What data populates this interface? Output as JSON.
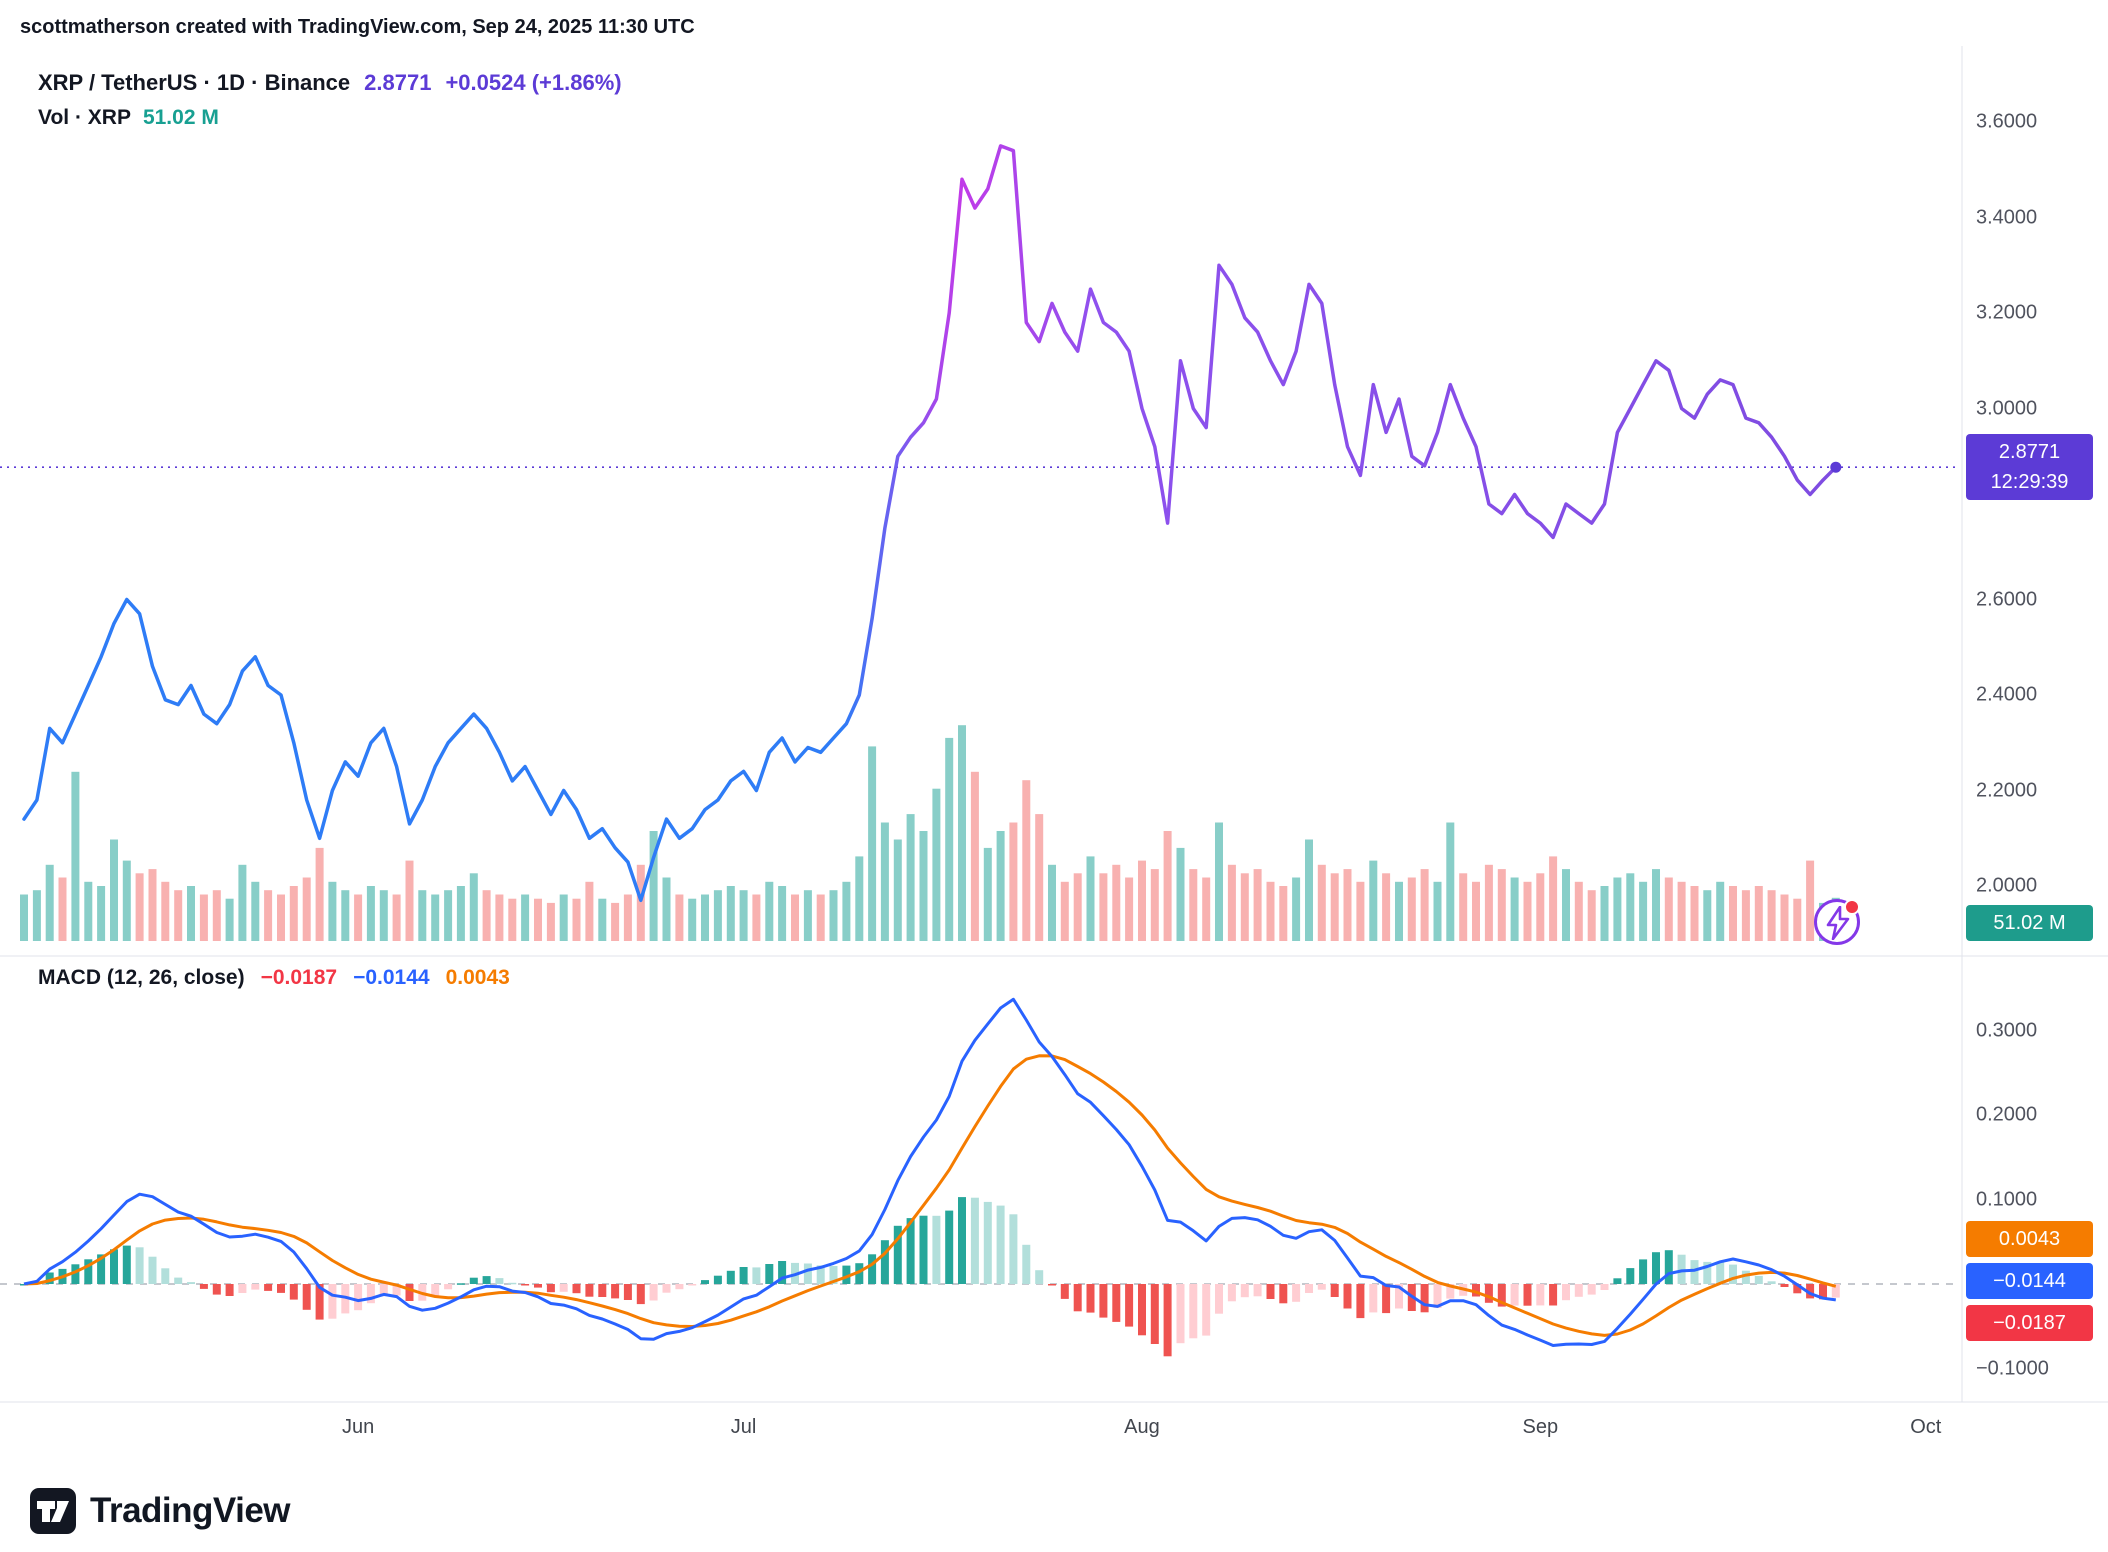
{
  "attribution": "scottmatherson created with TradingView.com, Sep 24, 2025 11:30 UTC",
  "header": {
    "symbol_line": "XRP / TetherUS · 1D · Binance",
    "price": "2.8771",
    "change": "+0.0524 (+1.86%)",
    "vol_label": "Vol · XRP",
    "vol_value": "51.02 M"
  },
  "macd_header": {
    "label": "MACD (12, 26, close)",
    "hist": "−0.0187",
    "macd": "−0.0144",
    "signal": "0.0043"
  },
  "badges": {
    "price": "2.8771",
    "countdown": "12:29:39",
    "volume": "51.02 M",
    "macd_signal": "0.0043",
    "macd_line": "−0.0144",
    "macd_hist": "−0.0187"
  },
  "logo": {
    "text": "TradingView"
  },
  "colors": {
    "accent_purple": "#5C3BD6",
    "teal_text": "#18A092",
    "red": "#F23645",
    "macd_line": "#2962FF",
    "signal_line": "#F57C00",
    "vol_up": "rgba(38,166,154,0.55)",
    "vol_down": "rgba(239,83,80,0.45)",
    "vol_badge": "#1E9C8C",
    "hist_up_grow": "#26A69A",
    "hist_up_fall": "#B2DFDB",
    "hist_down_grow": "#FFCDD2",
    "hist_down_fall": "#EF5350",
    "grid": "#E0E3EB",
    "zero_line": "#B2B5BE",
    "text_dark": "#131722",
    "text_gray": "#50535E",
    "line_gradient": [
      {
        "o": 0,
        "c": "#2E7CF6"
      },
      {
        "o": 0.43,
        "c": "#2E7CF6"
      },
      {
        "o": 0.49,
        "c": "#C13BE8"
      },
      {
        "o": 0.56,
        "c": "#8E51EE"
      },
      {
        "o": 1,
        "c": "#7C4BDF"
      }
    ]
  },
  "chart_data": {
    "type": "line",
    "title": "XRP / TetherUS · 1D · Binance",
    "panels": [
      "price_with_volume",
      "macd"
    ],
    "months": [
      {
        "label": "Jun",
        "i": 26
      },
      {
        "label": "Jul",
        "i": 56
      },
      {
        "label": "Aug",
        "i": 87
      },
      {
        "label": "Sep",
        "i": 118
      },
      {
        "label": "Oct",
        "i": 148
      }
    ],
    "price": {
      "last": 2.8771,
      "ylim": [
        1.88,
        3.74
      ],
      "ticks": [
        {
          "label": "3.6000",
          "v": 3.6
        },
        {
          "label": "3.4000",
          "v": 3.4
        },
        {
          "label": "3.2000",
          "v": 3.2
        },
        {
          "label": "3.0000",
          "v": 3.0
        },
        {
          "label": "2.6000",
          "v": 2.6
        },
        {
          "label": "2.4000",
          "v": 2.4
        },
        {
          "label": "2.2000",
          "v": 2.2
        },
        {
          "label": "2.0000",
          "v": 2.0
        }
      ],
      "values": [
        2.14,
        2.18,
        2.33,
        2.3,
        2.36,
        2.42,
        2.48,
        2.55,
        2.6,
        2.57,
        2.46,
        2.39,
        2.38,
        2.42,
        2.36,
        2.34,
        2.38,
        2.45,
        2.48,
        2.42,
        2.4,
        2.3,
        2.18,
        2.1,
        2.2,
        2.26,
        2.23,
        2.3,
        2.33,
        2.25,
        2.13,
        2.18,
        2.25,
        2.3,
        2.33,
        2.36,
        2.33,
        2.28,
        2.22,
        2.25,
        2.2,
        2.15,
        2.2,
        2.16,
        2.1,
        2.12,
        2.08,
        2.05,
        1.97,
        2.06,
        2.14,
        2.1,
        2.12,
        2.16,
        2.18,
        2.22,
        2.24,
        2.2,
        2.28,
        2.31,
        2.26,
        2.29,
        2.28,
        2.31,
        2.34,
        2.4,
        2.56,
        2.75,
        2.9,
        2.94,
        2.97,
        3.02,
        3.2,
        3.48,
        3.42,
        3.46,
        3.55,
        3.54,
        3.18,
        3.14,
        3.22,
        3.16,
        3.12,
        3.25,
        3.18,
        3.16,
        3.12,
        3.0,
        2.92,
        2.76,
        3.1,
        3.0,
        2.96,
        3.3,
        3.26,
        3.19,
        3.16,
        3.1,
        3.05,
        3.12,
        3.26,
        3.22,
        3.05,
        2.92,
        2.86,
        3.05,
        2.95,
        3.02,
        2.9,
        2.88,
        2.95,
        3.05,
        2.98,
        2.92,
        2.8,
        2.78,
        2.82,
        2.78,
        2.76,
        2.73,
        2.8,
        2.78,
        2.76,
        2.8,
        2.95,
        3.0,
        3.05,
        3.1,
        3.08,
        3.0,
        2.98,
        3.03,
        3.06,
        3.05,
        2.98,
        2.97,
        2.94,
        2.9,
        2.85,
        2.82,
        2.85,
        2.8771
      ]
    },
    "volume": {
      "unit": "M",
      "max": 260,
      "last_label": "51.02 M",
      "values": [
        55,
        60,
        90,
        75,
        200,
        70,
        65,
        120,
        95,
        80,
        85,
        70,
        60,
        65,
        55,
        60,
        50,
        90,
        70,
        60,
        55,
        65,
        75,
        110,
        70,
        60,
        55,
        65,
        60,
        55,
        95,
        60,
        55,
        60,
        65,
        80,
        60,
        55,
        50,
        55,
        50,
        45,
        55,
        50,
        70,
        50,
        45,
        55,
        90,
        130,
        75,
        55,
        50,
        55,
        60,
        65,
        60,
        55,
        70,
        65,
        55,
        60,
        55,
        60,
        70,
        100,
        230,
        140,
        120,
        150,
        130,
        180,
        240,
        255,
        200,
        110,
        130,
        140,
        190,
        150,
        90,
        70,
        80,
        100,
        80,
        90,
        75,
        95,
        85,
        130,
        110,
        85,
        75,
        140,
        90,
        80,
        85,
        70,
        65,
        75,
        120,
        90,
        80,
        85,
        70,
        95,
        80,
        70,
        75,
        85,
        70,
        140,
        80,
        70,
        90,
        85,
        75,
        70,
        80,
        100,
        85,
        70,
        60,
        65,
        75,
        80,
        70,
        85,
        75,
        70,
        65,
        60,
        70,
        65,
        60,
        65,
        60,
        55,
        50,
        95,
        45,
        51.02
      ]
    },
    "macd": {
      "fast": 12,
      "slow": 26,
      "signal": 9,
      "source": "close",
      "derived_from": "price.values",
      "ylim": [
        -0.137,
        0.366
      ],
      "ticks": [
        {
          "label": "0.3000",
          "v": 0.3
        },
        {
          "label": "0.2000",
          "v": 0.2
        },
        {
          "label": "0.1000",
          "v": 0.1
        },
        {
          "label": "−0.1000",
          "v": -0.1
        }
      ],
      "last": {
        "hist": -0.0187,
        "macd": -0.0144,
        "signal": 0.0043
      }
    }
  }
}
